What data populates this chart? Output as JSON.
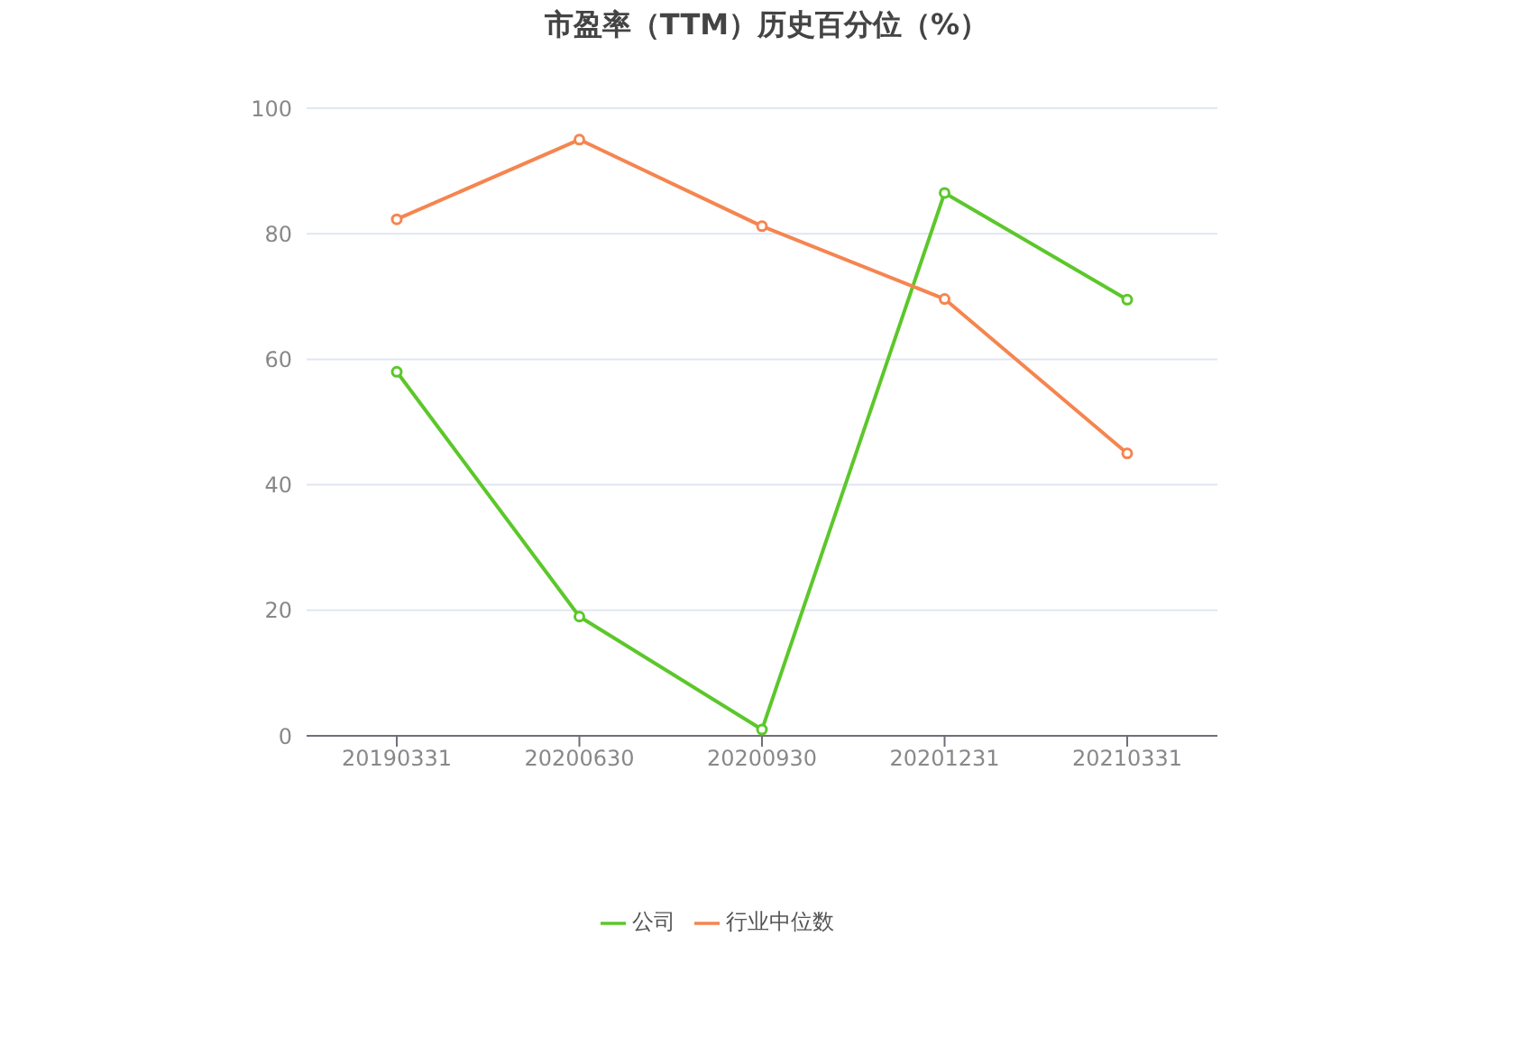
{
  "chart_data": {
    "type": "line",
    "title": "市盈率（TTM）历史百分位（%）",
    "categories": [
      "20190331",
      "20200630",
      "20200930",
      "20201231",
      "20210331"
    ],
    "series": [
      {
        "name": "公司",
        "color": "#5cc72a",
        "values": [
          58,
          19,
          1,
          86.5,
          69.5
        ]
      },
      {
        "name": "行业中位数",
        "color": "#f5854f",
        "values": [
          82.3,
          95,
          81.2,
          69.6,
          45
        ]
      }
    ],
    "ylim": [
      0,
      100
    ],
    "yticks": [
      0,
      20,
      40,
      60,
      80,
      100
    ],
    "grid": "y",
    "legend": "bottom",
    "marker": "circle",
    "line_style": "solid"
  }
}
